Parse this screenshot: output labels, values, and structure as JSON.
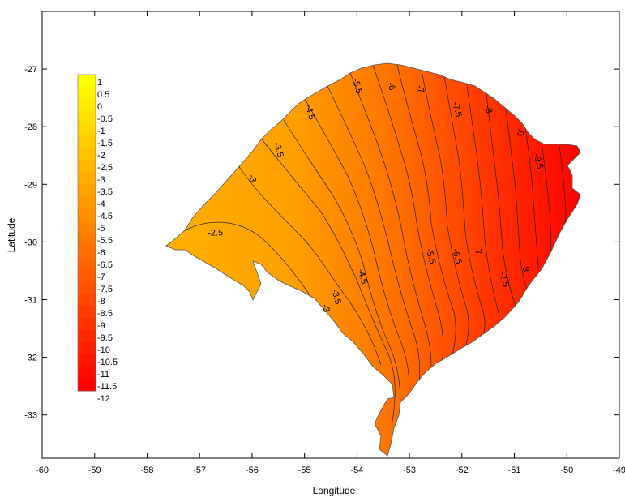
{
  "chart_data": {
    "type": "contour-map",
    "xlabel": "Longitude",
    "ylabel": "Latitude",
    "x_ticks": [
      "-60",
      "-59",
      "-58",
      "-57",
      "-56",
      "-55",
      "-54",
      "-53",
      "-52",
      "-51",
      "-50",
      "-49"
    ],
    "y_ticks": [
      "-27",
      "-28",
      "-29",
      "-30",
      "-31",
      "-32",
      "-33"
    ],
    "xlim": [
      -60,
      -49
    ],
    "ylim": [
      -33.75,
      -26
    ],
    "colorbar": {
      "min": -12,
      "max": 1,
      "step": 0.5,
      "labels": [
        "1",
        "0.5",
        "0",
        "-0.5",
        "-1",
        "-1.5",
        "-2",
        "-2.5",
        "-3",
        "-3.5",
        "-4",
        "-4.5",
        "-5",
        "-5.5",
        "-6",
        "-6.5",
        "-7",
        "-7.5",
        "-8",
        "-8.5",
        "-9",
        "-9.5",
        "-10",
        "-10.5",
        "-11",
        "-11.5",
        "-12"
      ],
      "color_high": "#ffff00",
      "color_low": "#ff0000"
    },
    "contour_labels": [
      {
        "text": "-2.5",
        "lon": -56.7,
        "lat": -29.85
      },
      {
        "text": "-3",
        "lon": -56.0,
        "lat": -28.9
      },
      {
        "text": "-3",
        "lon": -54.6,
        "lat": -31.15
      },
      {
        "text": "-3.5",
        "lon": -55.5,
        "lat": -28.4
      },
      {
        "text": "-3.5",
        "lon": -54.4,
        "lat": -30.95
      },
      {
        "text": "-4.5",
        "lon": -54.9,
        "lat": -27.75
      },
      {
        "text": "-4.5",
        "lon": -53.9,
        "lat": -30.6
      },
      {
        "text": "-5.5",
        "lon": -54.0,
        "lat": -27.3
      },
      {
        "text": "-5.5",
        "lon": -52.6,
        "lat": -30.25
      },
      {
        "text": "-6",
        "lon": -53.35,
        "lat": -27.3
      },
      {
        "text": "-6.5",
        "lon": -52.1,
        "lat": -30.25
      },
      {
        "text": "-7",
        "lon": -52.8,
        "lat": -27.35
      },
      {
        "text": "-7",
        "lon": -51.7,
        "lat": -30.15
      },
      {
        "text": "-7.5",
        "lon": -52.1,
        "lat": -27.7
      },
      {
        "text": "-7.5",
        "lon": -51.2,
        "lat": -30.65
      },
      {
        "text": "-8",
        "lon": -51.5,
        "lat": -27.7
      },
      {
        "text": "-8",
        "lon": -50.8,
        "lat": -30.45
      },
      {
        "text": "-9",
        "lon": -50.9,
        "lat": -28.1
      },
      {
        "text": "-9.5",
        "lon": -50.55,
        "lat": -28.6
      }
    ]
  }
}
